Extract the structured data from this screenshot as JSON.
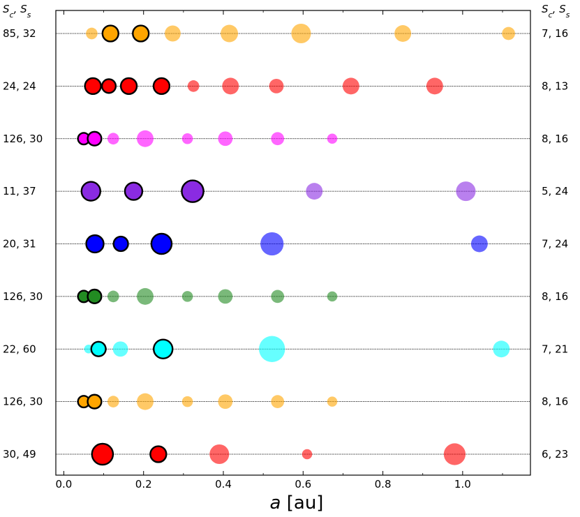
{
  "chart_data": {
    "type": "scatter",
    "xlabel_var": "a",
    "xlabel_unit": "[au]",
    "xlim": [
      -0.02,
      1.17
    ],
    "xticks": [
      "0.0",
      "0.2",
      "0.4",
      "0.6",
      "0.8",
      "1.0"
    ],
    "xtick_values": [
      0.0,
      0.2,
      0.4,
      0.6,
      0.8,
      1.0
    ],
    "left_header": "Sc, Ss",
    "right_header": "Sc, Ss",
    "rows": [
      {
        "left_label": "85, 32",
        "right_label": "7, 16",
        "color": "#ffa500",
        "planets": [
          {
            "a": 0.07,
            "r": 1.6,
            "outlined": false
          },
          {
            "a": 0.117,
            "r": 2.2,
            "outlined": true
          },
          {
            "a": 0.193,
            "r": 2.2,
            "outlined": true
          },
          {
            "a": 0.273,
            "r": 2.2,
            "outlined": false
          },
          {
            "a": 0.415,
            "r": 2.4,
            "outlined": false
          },
          {
            "a": 0.595,
            "r": 2.7,
            "outlined": false
          },
          {
            "a": 0.85,
            "r": 2.3,
            "outlined": false
          },
          {
            "a": 1.115,
            "r": 1.8,
            "outlined": false
          }
        ]
      },
      {
        "left_label": "24, 24",
        "right_label": "8, 13",
        "color": "#ff0000",
        "planets": [
          {
            "a": 0.073,
            "r": 2.2,
            "outlined": true
          },
          {
            "a": 0.113,
            "r": 1.9,
            "outlined": true
          },
          {
            "a": 0.163,
            "r": 2.2,
            "outlined": true
          },
          {
            "a": 0.245,
            "r": 2.2,
            "outlined": true
          },
          {
            "a": 0.325,
            "r": 1.6,
            "outlined": false
          },
          {
            "a": 0.418,
            "r": 2.3,
            "outlined": false
          },
          {
            "a": 0.533,
            "r": 2.0,
            "outlined": false
          },
          {
            "a": 0.72,
            "r": 2.3,
            "outlined": false
          },
          {
            "a": 0.93,
            "r": 2.3,
            "outlined": false
          }
        ]
      },
      {
        "left_label": "126, 30",
        "right_label": "8, 16",
        "color": "#ff00ff",
        "planets": [
          {
            "a": 0.05,
            "r": 1.6,
            "outlined": true
          },
          {
            "a": 0.077,
            "r": 1.9,
            "outlined": true
          },
          {
            "a": 0.124,
            "r": 1.6,
            "outlined": false
          },
          {
            "a": 0.204,
            "r": 2.3,
            "outlined": false
          },
          {
            "a": 0.31,
            "r": 1.5,
            "outlined": false
          },
          {
            "a": 0.405,
            "r": 2.0,
            "outlined": false
          },
          {
            "a": 0.536,
            "r": 1.8,
            "outlined": false
          },
          {
            "a": 0.673,
            "r": 1.4,
            "outlined": false
          }
        ]
      },
      {
        "left_label": "11, 37",
        "right_label": "5, 24",
        "color": "#8a2be2",
        "planets": [
          {
            "a": 0.068,
            "r": 2.6,
            "outlined": true
          },
          {
            "a": 0.175,
            "r": 2.4,
            "outlined": true
          },
          {
            "a": 0.323,
            "r": 3.0,
            "outlined": true
          },
          {
            "a": 0.628,
            "r": 2.3,
            "outlined": false
          },
          {
            "a": 1.008,
            "r": 2.7,
            "outlined": false
          }
        ]
      },
      {
        "left_label": "20, 31",
        "right_label": "7, 24",
        "color": "#0000ff",
        "planets": [
          {
            "a": 0.078,
            "r": 2.4,
            "outlined": true
          },
          {
            "a": 0.143,
            "r": 2.0,
            "outlined": true
          },
          {
            "a": 0.245,
            "r": 2.8,
            "outlined": true
          },
          {
            "a": 0.522,
            "r": 3.2,
            "outlined": false
          },
          {
            "a": 1.042,
            "r": 2.3,
            "outlined": false
          }
        ]
      },
      {
        "left_label": "126, 30",
        "right_label": "8, 16",
        "color": "#228b22",
        "planets": [
          {
            "a": 0.05,
            "r": 1.6,
            "outlined": true
          },
          {
            "a": 0.077,
            "r": 1.9,
            "outlined": true
          },
          {
            "a": 0.124,
            "r": 1.6,
            "outlined": false
          },
          {
            "a": 0.204,
            "r": 2.3,
            "outlined": false
          },
          {
            "a": 0.31,
            "r": 1.5,
            "outlined": false
          },
          {
            "a": 0.405,
            "r": 2.0,
            "outlined": false
          },
          {
            "a": 0.536,
            "r": 1.8,
            "outlined": false
          },
          {
            "a": 0.673,
            "r": 1.4,
            "outlined": false
          }
        ]
      },
      {
        "left_label": "22, 60",
        "right_label": "7, 21",
        "color": "#00ffff",
        "planets": [
          {
            "a": 0.062,
            "r": 1.2,
            "outlined": false
          },
          {
            "a": 0.087,
            "r": 2.0,
            "outlined": true
          },
          {
            "a": 0.142,
            "r": 2.1,
            "outlined": false
          },
          {
            "a": 0.249,
            "r": 2.6,
            "outlined": true
          },
          {
            "a": 0.522,
            "r": 3.6,
            "outlined": false
          },
          {
            "a": 1.097,
            "r": 2.3,
            "outlined": false
          }
        ]
      },
      {
        "left_label": "126, 30",
        "right_label": "8, 16",
        "color": "#ffa500",
        "planets": [
          {
            "a": 0.05,
            "r": 1.6,
            "outlined": true
          },
          {
            "a": 0.077,
            "r": 1.9,
            "outlined": true
          },
          {
            "a": 0.124,
            "r": 1.6,
            "outlined": false
          },
          {
            "a": 0.204,
            "r": 2.3,
            "outlined": false
          },
          {
            "a": 0.31,
            "r": 1.5,
            "outlined": false
          },
          {
            "a": 0.405,
            "r": 2.0,
            "outlined": false
          },
          {
            "a": 0.536,
            "r": 1.8,
            "outlined": false
          },
          {
            "a": 0.673,
            "r": 1.4,
            "outlined": false
          }
        ]
      },
      {
        "left_label": "30, 49",
        "right_label": "6, 23",
        "color": "#ff0000",
        "planets": [
          {
            "a": 0.097,
            "r": 2.9,
            "outlined": true
          },
          {
            "a": 0.237,
            "r": 2.2,
            "outlined": true
          },
          {
            "a": 0.39,
            "r": 2.7,
            "outlined": false
          },
          {
            "a": 0.61,
            "r": 1.4,
            "outlined": false
          },
          {
            "a": 0.98,
            "r": 3.0,
            "outlined": false
          }
        ]
      }
    ]
  }
}
